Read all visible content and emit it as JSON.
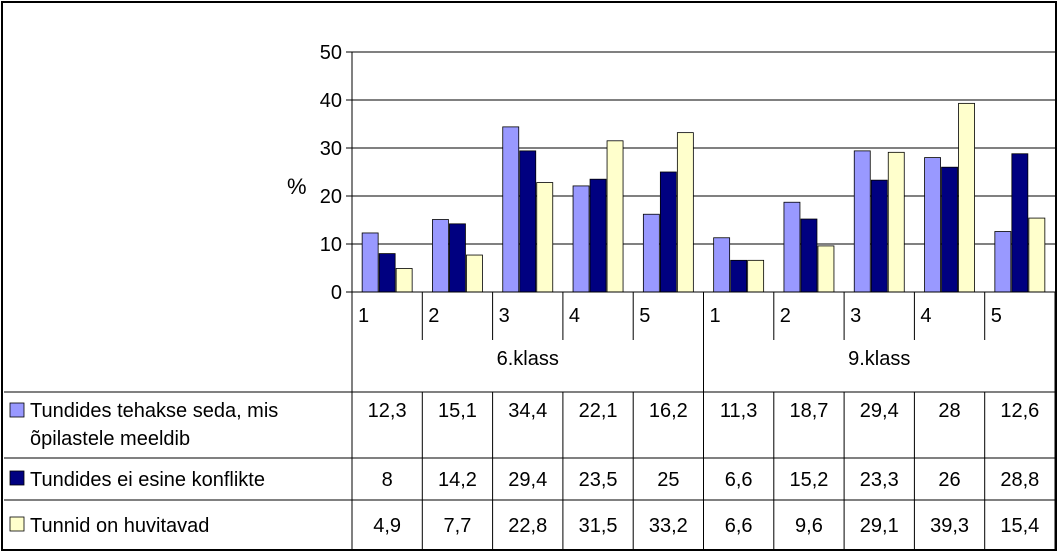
{
  "chart_data": {
    "type": "bar",
    "title": "",
    "xlabel": "",
    "ylabel": "%",
    "ylim": [
      0,
      50
    ],
    "yticks": [
      "0",
      "10",
      "20",
      "30",
      "40",
      "50"
    ],
    "grid": true,
    "legend": "data-table",
    "groups": [
      {
        "label": "6.klass",
        "categories": [
          "1",
          "2",
          "3",
          "4",
          "5"
        ]
      },
      {
        "label": "9.klass",
        "categories": [
          "1",
          "2",
          "3",
          "4",
          "5"
        ]
      }
    ],
    "series": [
      {
        "name": "Tundides tehakse seda, mis õpilastele meeldib",
        "name_lines": [
          "Tundides tehakse seda, mis",
          "õpilastele meeldib"
        ],
        "color": "#9999ff",
        "values": [
          12.3,
          15.1,
          34.4,
          22.1,
          16.2,
          11.3,
          18.7,
          29.4,
          28,
          12.6
        ],
        "labels": [
          "12,3",
          "15,1",
          "34,4",
          "22,1",
          "16,2",
          "11,3",
          "18,7",
          "29,4",
          "28",
          "12,6"
        ]
      },
      {
        "name": "Tundides ei esine konflikte",
        "name_lines": [
          "Tundides ei esine konflikte"
        ],
        "color": "#000080",
        "values": [
          8,
          14.2,
          29.4,
          23.5,
          25,
          6.6,
          15.2,
          23.3,
          26,
          28.8
        ],
        "labels": [
          "8",
          "14,2",
          "29,4",
          "23,5",
          "25",
          "6,6",
          "15,2",
          "23,3",
          "26",
          "28,8"
        ]
      },
      {
        "name": "Tunnid on huvitavad",
        "name_lines": [
          "Tunnid on huvitavad"
        ],
        "color": "#ffffcc",
        "values": [
          4.9,
          7.7,
          22.8,
          31.5,
          33.2,
          6.6,
          9.6,
          29.1,
          39.3,
          15.4
        ],
        "labels": [
          "4,9",
          "7,7",
          "22,8",
          "31,5",
          "33,2",
          "6,6",
          "9,6",
          "29,1",
          "39,3",
          "15,4"
        ]
      }
    ]
  }
}
